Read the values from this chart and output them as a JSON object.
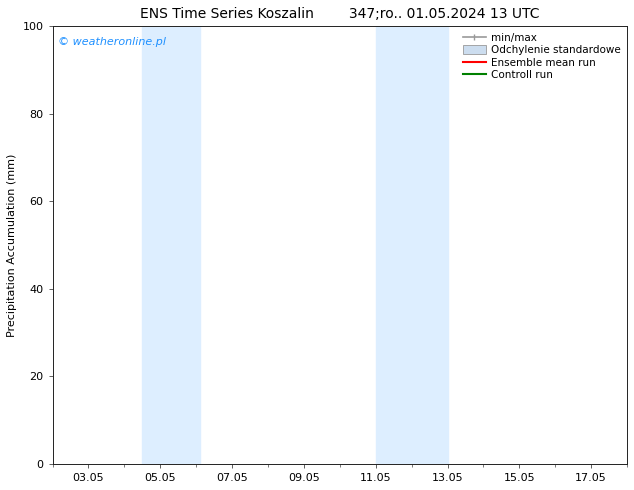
{
  "title_left": "ENS Time Series Koszalin",
  "title_right": "347;ro.. 01.05.2024 13 UTC",
  "ylabel": "Precipitation Accumulation (mm)",
  "ylim": [
    0,
    100
  ],
  "yticks": [
    0,
    20,
    40,
    60,
    80,
    100
  ],
  "background_color": "#ffffff",
  "plot_bg_color": "#ffffff",
  "watermark": "© weatheronline.pl",
  "watermark_color": "#1e90ff",
  "shaded_regions": [
    {
      "xstart": 4.5,
      "xend": 6.1,
      "color": "#ddeeff"
    },
    {
      "xstart": 11.0,
      "xend": 13.0,
      "color": "#ddeeff"
    }
  ],
  "xtick_labels": [
    "03.05",
    "05.05",
    "07.05",
    "09.05",
    "11.05",
    "13.05",
    "15.05",
    "17.05"
  ],
  "xtick_positions": [
    3,
    5,
    7,
    9,
    11,
    13,
    15,
    17
  ],
  "xlim": [
    2.0,
    18.0
  ],
  "legend_items": [
    {
      "label": "min/max",
      "color": "#999999",
      "lw": 1.2,
      "style": "solid"
    },
    {
      "label": "Odchylenie standardowe",
      "color": "#ccddef",
      "lw": 6,
      "style": "solid"
    },
    {
      "label": "Ensemble mean run",
      "color": "#ff0000",
      "lw": 1.5,
      "style": "solid"
    },
    {
      "label": "Controll run",
      "color": "#008000",
      "lw": 1.5,
      "style": "solid"
    }
  ],
  "font_size_title": 10,
  "font_size_axis": 8,
  "font_size_tick": 8,
  "font_size_legend": 7.5,
  "font_size_watermark": 8
}
